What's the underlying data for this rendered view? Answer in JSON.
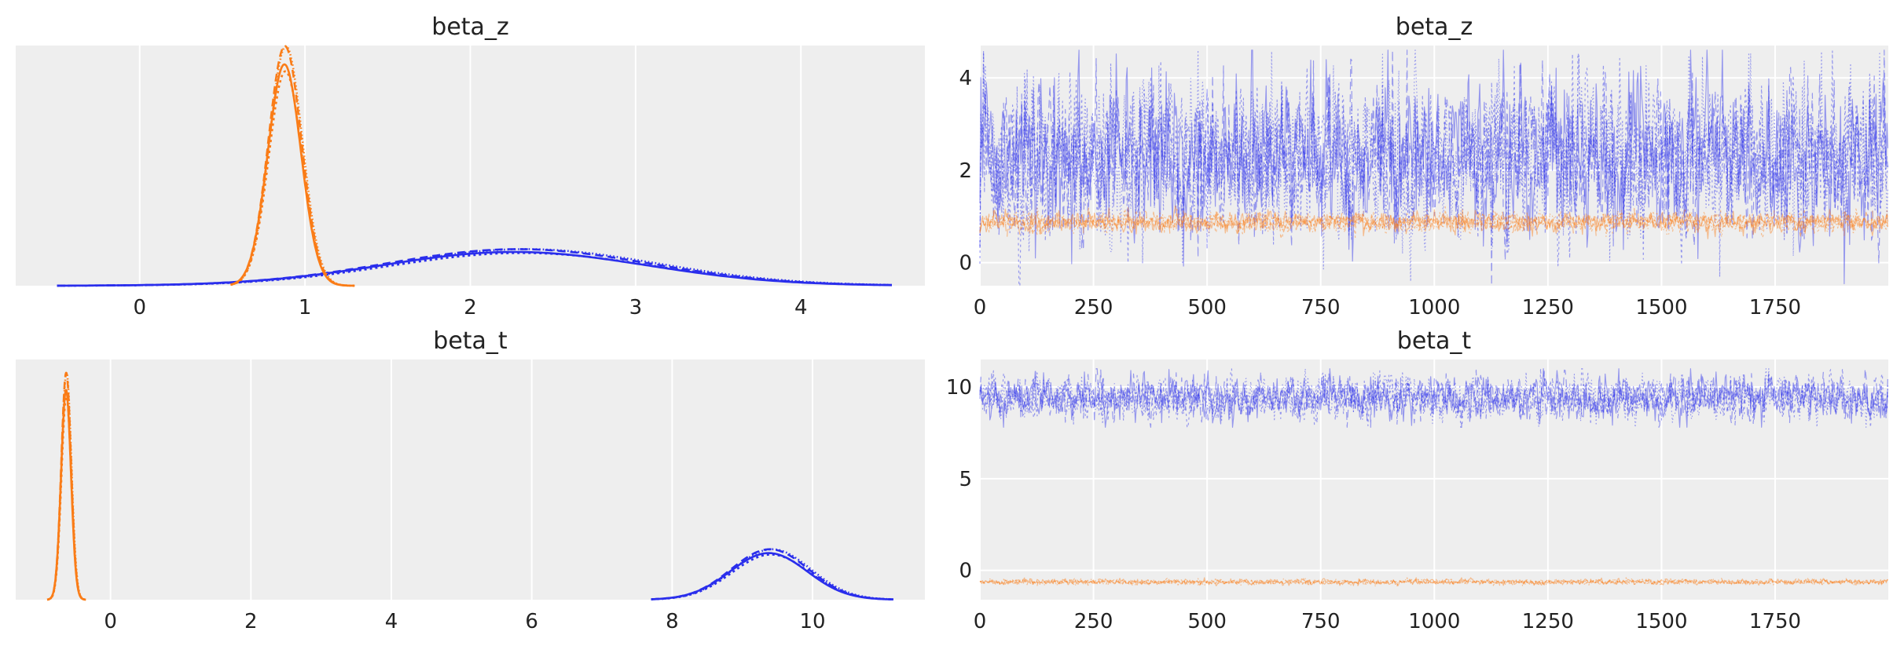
{
  "colors": {
    "blue": "#2a2eec",
    "orange": "#fa7c17",
    "panel_bg": "#eeeeee",
    "grid": "#ffffff"
  },
  "chart_data": [
    {
      "type": "line",
      "kind": "density",
      "title": "beta_z",
      "x_ticks": [
        0,
        1,
        2,
        3,
        4
      ],
      "xlim": [
        -0.75,
        4.75
      ],
      "ylim": [
        0,
        1.0
      ],
      "series": [
        {
          "color": "#2a2eec",
          "mean": 2.3,
          "sd": 0.8,
          "peak": 0.145,
          "x_range": [
            -0.5,
            4.55
          ]
        },
        {
          "color": "#fa7c17",
          "mean": 0.88,
          "sd": 0.1,
          "peak": 0.95,
          "x_range": [
            0.55,
            1.3
          ]
        }
      ]
    },
    {
      "type": "line",
      "kind": "trace",
      "title": "beta_z",
      "x_ticks": [
        0,
        250,
        500,
        750,
        1000,
        1250,
        1500,
        1750
      ],
      "y_ticks": [
        0,
        2,
        4
      ],
      "xlim": [
        0,
        1999
      ],
      "ylim": [
        -0.5,
        4.7
      ],
      "series": [
        {
          "color": "#2a2eec",
          "center": 2.3,
          "spread": 0.8,
          "min": -0.5,
          "max": 4.6
        },
        {
          "color": "#fa7c17",
          "center": 0.88,
          "spread": 0.1,
          "min": 0.5,
          "max": 1.3
        }
      ]
    },
    {
      "type": "line",
      "kind": "density",
      "title": "beta_t",
      "x_ticks": [
        0,
        2,
        4,
        6,
        8,
        10
      ],
      "xlim": [
        -1.35,
        11.6
      ],
      "ylim": [
        0,
        1.0
      ],
      "series": [
        {
          "color": "#2a2eec",
          "mean": 9.4,
          "sd": 0.55,
          "peak": 0.2,
          "x_range": [
            7.7,
            11.15
          ]
        },
        {
          "color": "#fa7c17",
          "mean": -0.63,
          "sd": 0.07,
          "peak": 0.9,
          "x_range": [
            -0.9,
            -0.35
          ]
        }
      ]
    },
    {
      "type": "line",
      "kind": "trace",
      "title": "beta_t",
      "x_ticks": [
        0,
        250,
        500,
        750,
        1000,
        1250,
        1500,
        1750
      ],
      "y_ticks": [
        0,
        5,
        10
      ],
      "xlim": [
        0,
        1999
      ],
      "ylim": [
        -1.6,
        11.5
      ],
      "series": [
        {
          "color": "#2a2eec",
          "center": 9.4,
          "spread": 0.55,
          "min": 7.8,
          "max": 11.0
        },
        {
          "color": "#fa7c17",
          "center": -0.63,
          "spread": 0.07,
          "min": -0.85,
          "max": -0.4
        }
      ]
    }
  ]
}
